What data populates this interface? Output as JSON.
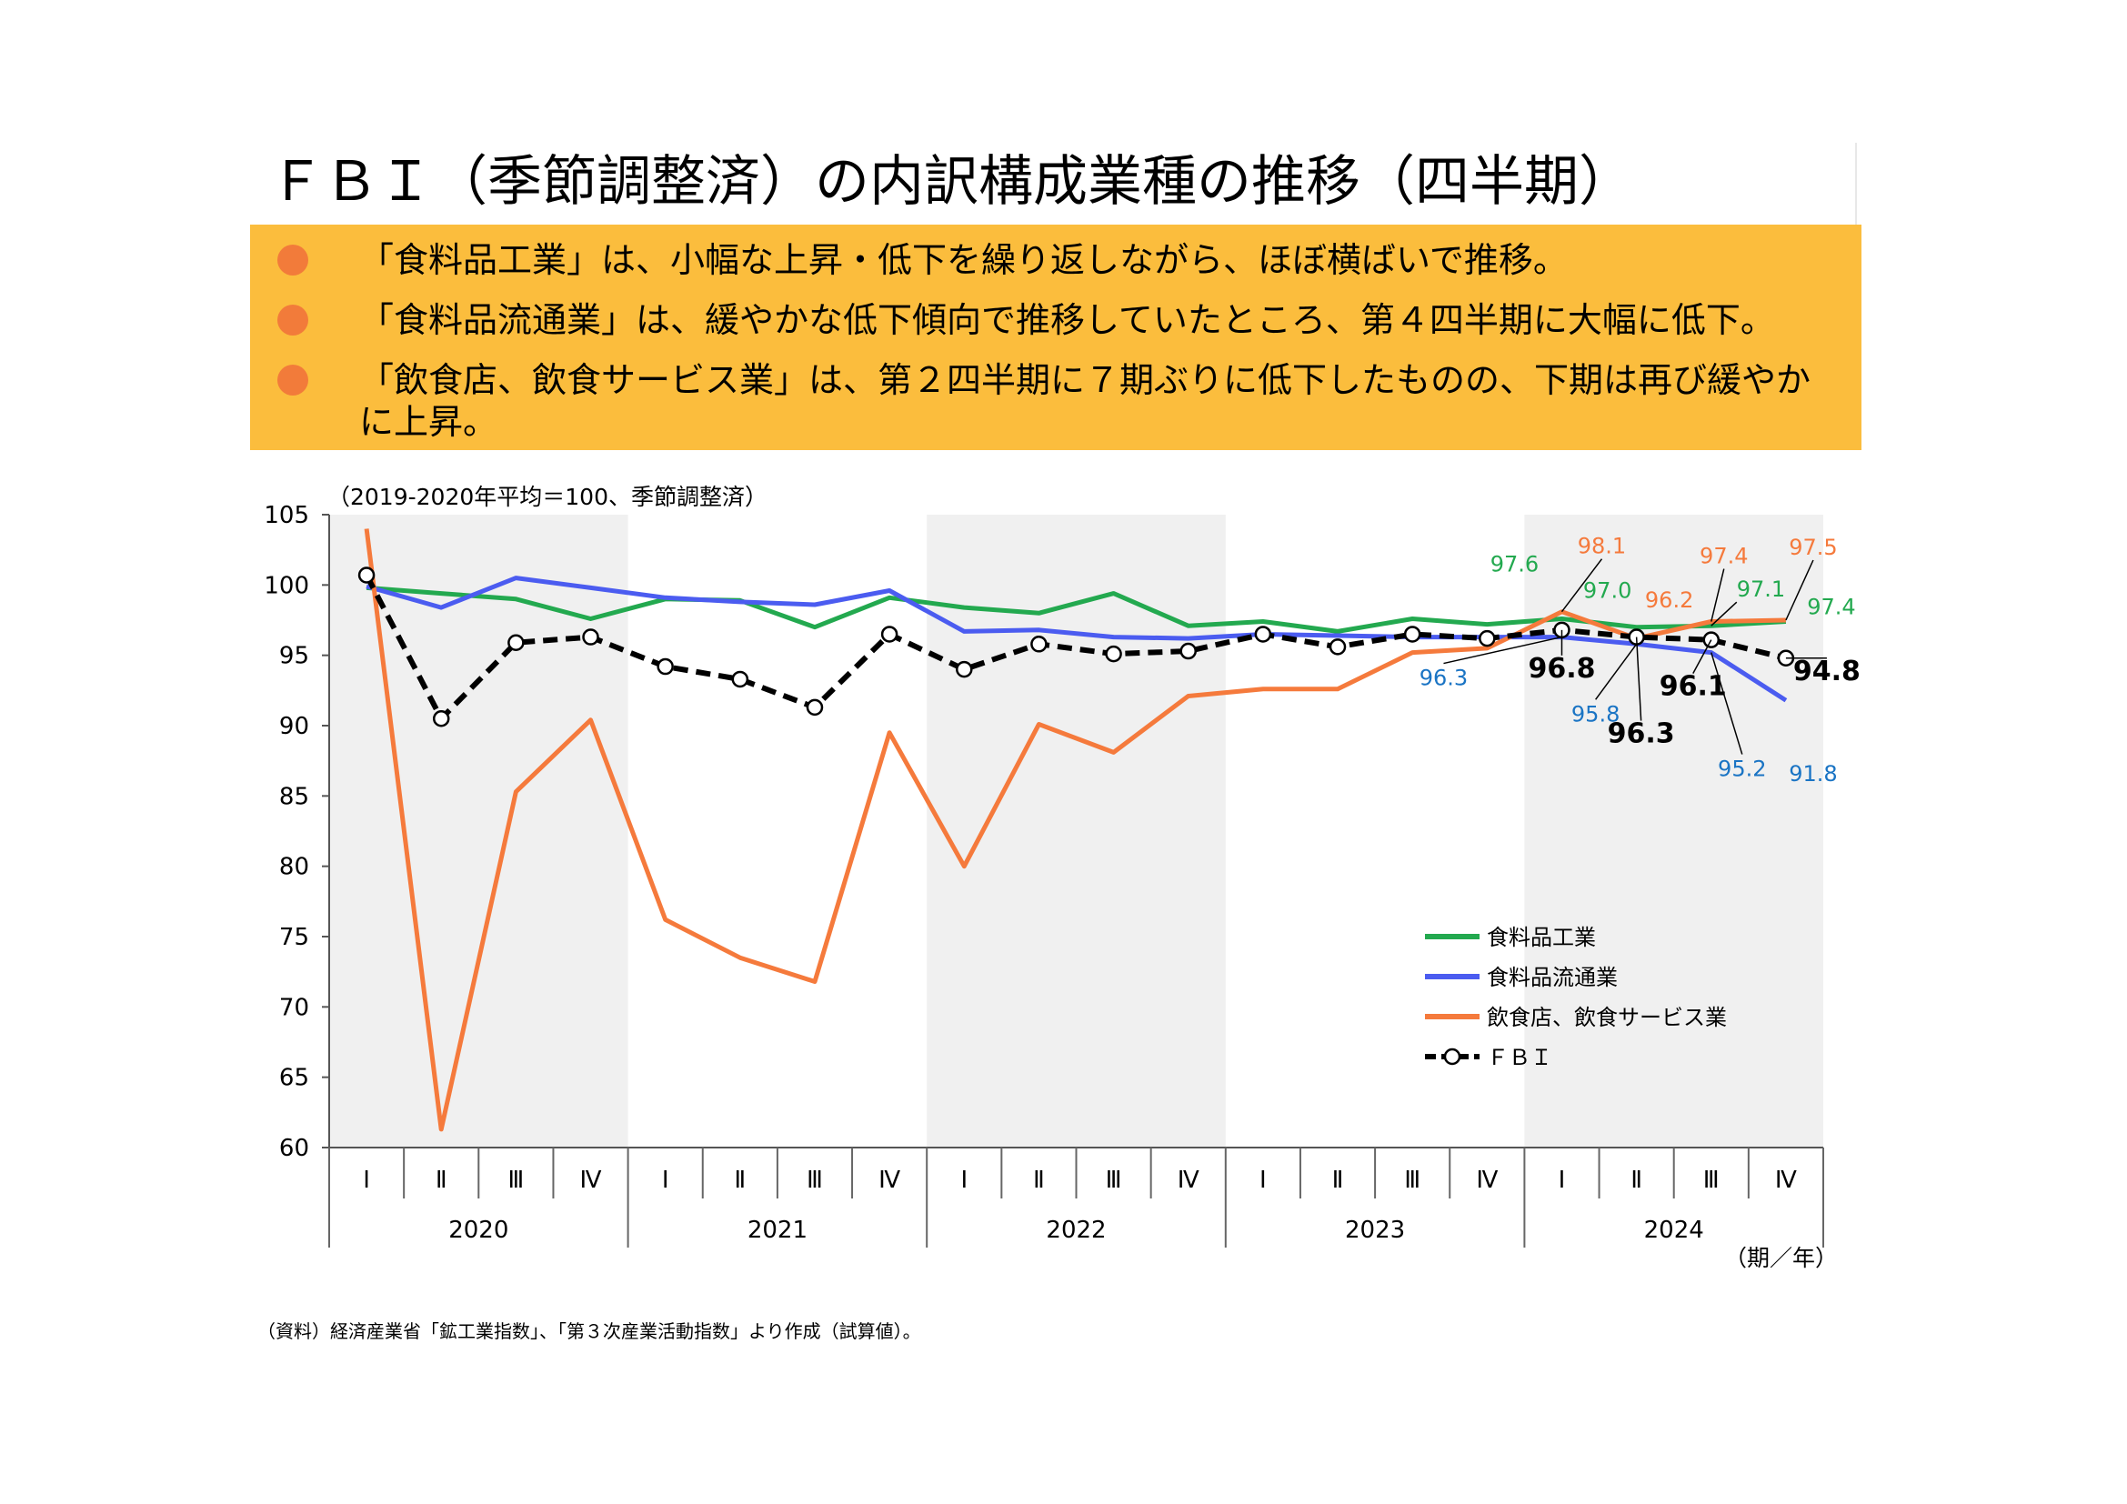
{
  "title": "ＦＢＩ（季節調整済）の内訳構成業種の推移（四半期）",
  "summary": [
    "「食料品工業」は、小幅な上昇・低下を繰り返しながら、ほぼ横ばいで推移。",
    "「食料品流通業」は、緩やかな低下傾向で推移していたところ、第４四半期に大幅に低下。",
    "「飲食店、飲食サービス業」は、第２四半期に７期ぶりに低下したものの、下期は再び緩やかに上昇。"
  ],
  "source": "（資料）経済産業省「鉱工業指数」、「第３次産業活動指数」より作成（試算値）。",
  "chart_data": {
    "type": "line",
    "subtitle": "（2019-2020年平均＝100、季節調整済）",
    "xlabel": "（期／年）",
    "ylim": [
      60,
      105
    ],
    "yticks": [
      105,
      100,
      95,
      90,
      85,
      80,
      75,
      70,
      65,
      60
    ],
    "quarters": [
      "Ⅰ",
      "Ⅱ",
      "Ⅲ",
      "Ⅳ"
    ],
    "years": [
      "2020",
      "2021",
      "2022",
      "2023",
      "2024"
    ],
    "shaded_years": [
      "2020",
      "2022",
      "2024"
    ],
    "grid": false,
    "legend_position": "right-middle",
    "series": [
      {
        "name": "食料品工業",
        "color": "#23a94f",
        "style": "solid",
        "values": [
          99.8,
          99.4,
          99.0,
          97.6,
          99.0,
          98.9,
          97.0,
          99.1,
          98.4,
          98.0,
          99.4,
          97.1,
          97.4,
          96.7,
          97.6,
          97.2,
          97.6,
          97.0,
          97.1,
          97.4
        ]
      },
      {
        "name": "食料品流通業",
        "color": "#4b5cf0",
        "style": "solid",
        "values": [
          99.9,
          98.4,
          100.5,
          99.8,
          99.1,
          98.8,
          98.6,
          99.6,
          96.7,
          96.8,
          96.3,
          96.2,
          96.5,
          96.4,
          96.3,
          96.3,
          96.3,
          95.8,
          95.2,
          91.8
        ]
      },
      {
        "name": "飲食店、飲食サービス業",
        "color": "#f57a3c",
        "style": "solid",
        "values": [
          104.0,
          61.3,
          85.3,
          90.4,
          76.2,
          73.5,
          71.8,
          89.5,
          80.0,
          90.1,
          88.1,
          92.1,
          92.6,
          92.6,
          95.2,
          95.5,
          98.1,
          96.2,
          97.4,
          97.5
        ]
      },
      {
        "name": "ＦＢＩ",
        "color": "#000000",
        "style": "dashed-markers",
        "values": [
          100.7,
          90.5,
          95.9,
          96.3,
          94.2,
          93.3,
          91.3,
          96.5,
          94.0,
          95.8,
          95.1,
          95.3,
          96.5,
          95.6,
          96.5,
          96.2,
          96.8,
          96.3,
          96.1,
          94.8
        ]
      }
    ],
    "annotations": [
      {
        "text": "97.6",
        "series": "食料品工業",
        "color": "#23a94f"
      },
      {
        "text": "97.0",
        "series": "食料品工業",
        "color": "#23a94f"
      },
      {
        "text": "97.1",
        "series": "食料品工業",
        "color": "#23a94f"
      },
      {
        "text": "97.4",
        "series": "食料品工業",
        "color": "#23a94f"
      },
      {
        "text": "98.1",
        "series": "飲食店、飲食サービス業",
        "color": "#f57a3c"
      },
      {
        "text": "96.2",
        "series": "飲食店、飲食サービス業",
        "color": "#f57a3c"
      },
      {
        "text": "97.4",
        "series": "飲食店、飲食サービス業",
        "color": "#f57a3c"
      },
      {
        "text": "97.5",
        "series": "飲食店、飲食サービス業",
        "color": "#f57a3c"
      },
      {
        "text": "96.3",
        "series": "食料品流通業",
        "color": "#1a74c4"
      },
      {
        "text": "95.8",
        "series": "食料品流通業",
        "color": "#1a74c4"
      },
      {
        "text": "95.2",
        "series": "食料品流通業",
        "color": "#1a74c4"
      },
      {
        "text": "91.8",
        "series": "食料品流通業",
        "color": "#1a74c4"
      },
      {
        "text": "96.8",
        "series": "ＦＢＩ",
        "color": "#000000"
      },
      {
        "text": "96.3",
        "series": "ＦＢＩ",
        "color": "#000000"
      },
      {
        "text": "96.1",
        "series": "ＦＢＩ",
        "color": "#000000"
      },
      {
        "text": "94.8",
        "series": "ＦＢＩ",
        "color": "#000000"
      }
    ]
  }
}
